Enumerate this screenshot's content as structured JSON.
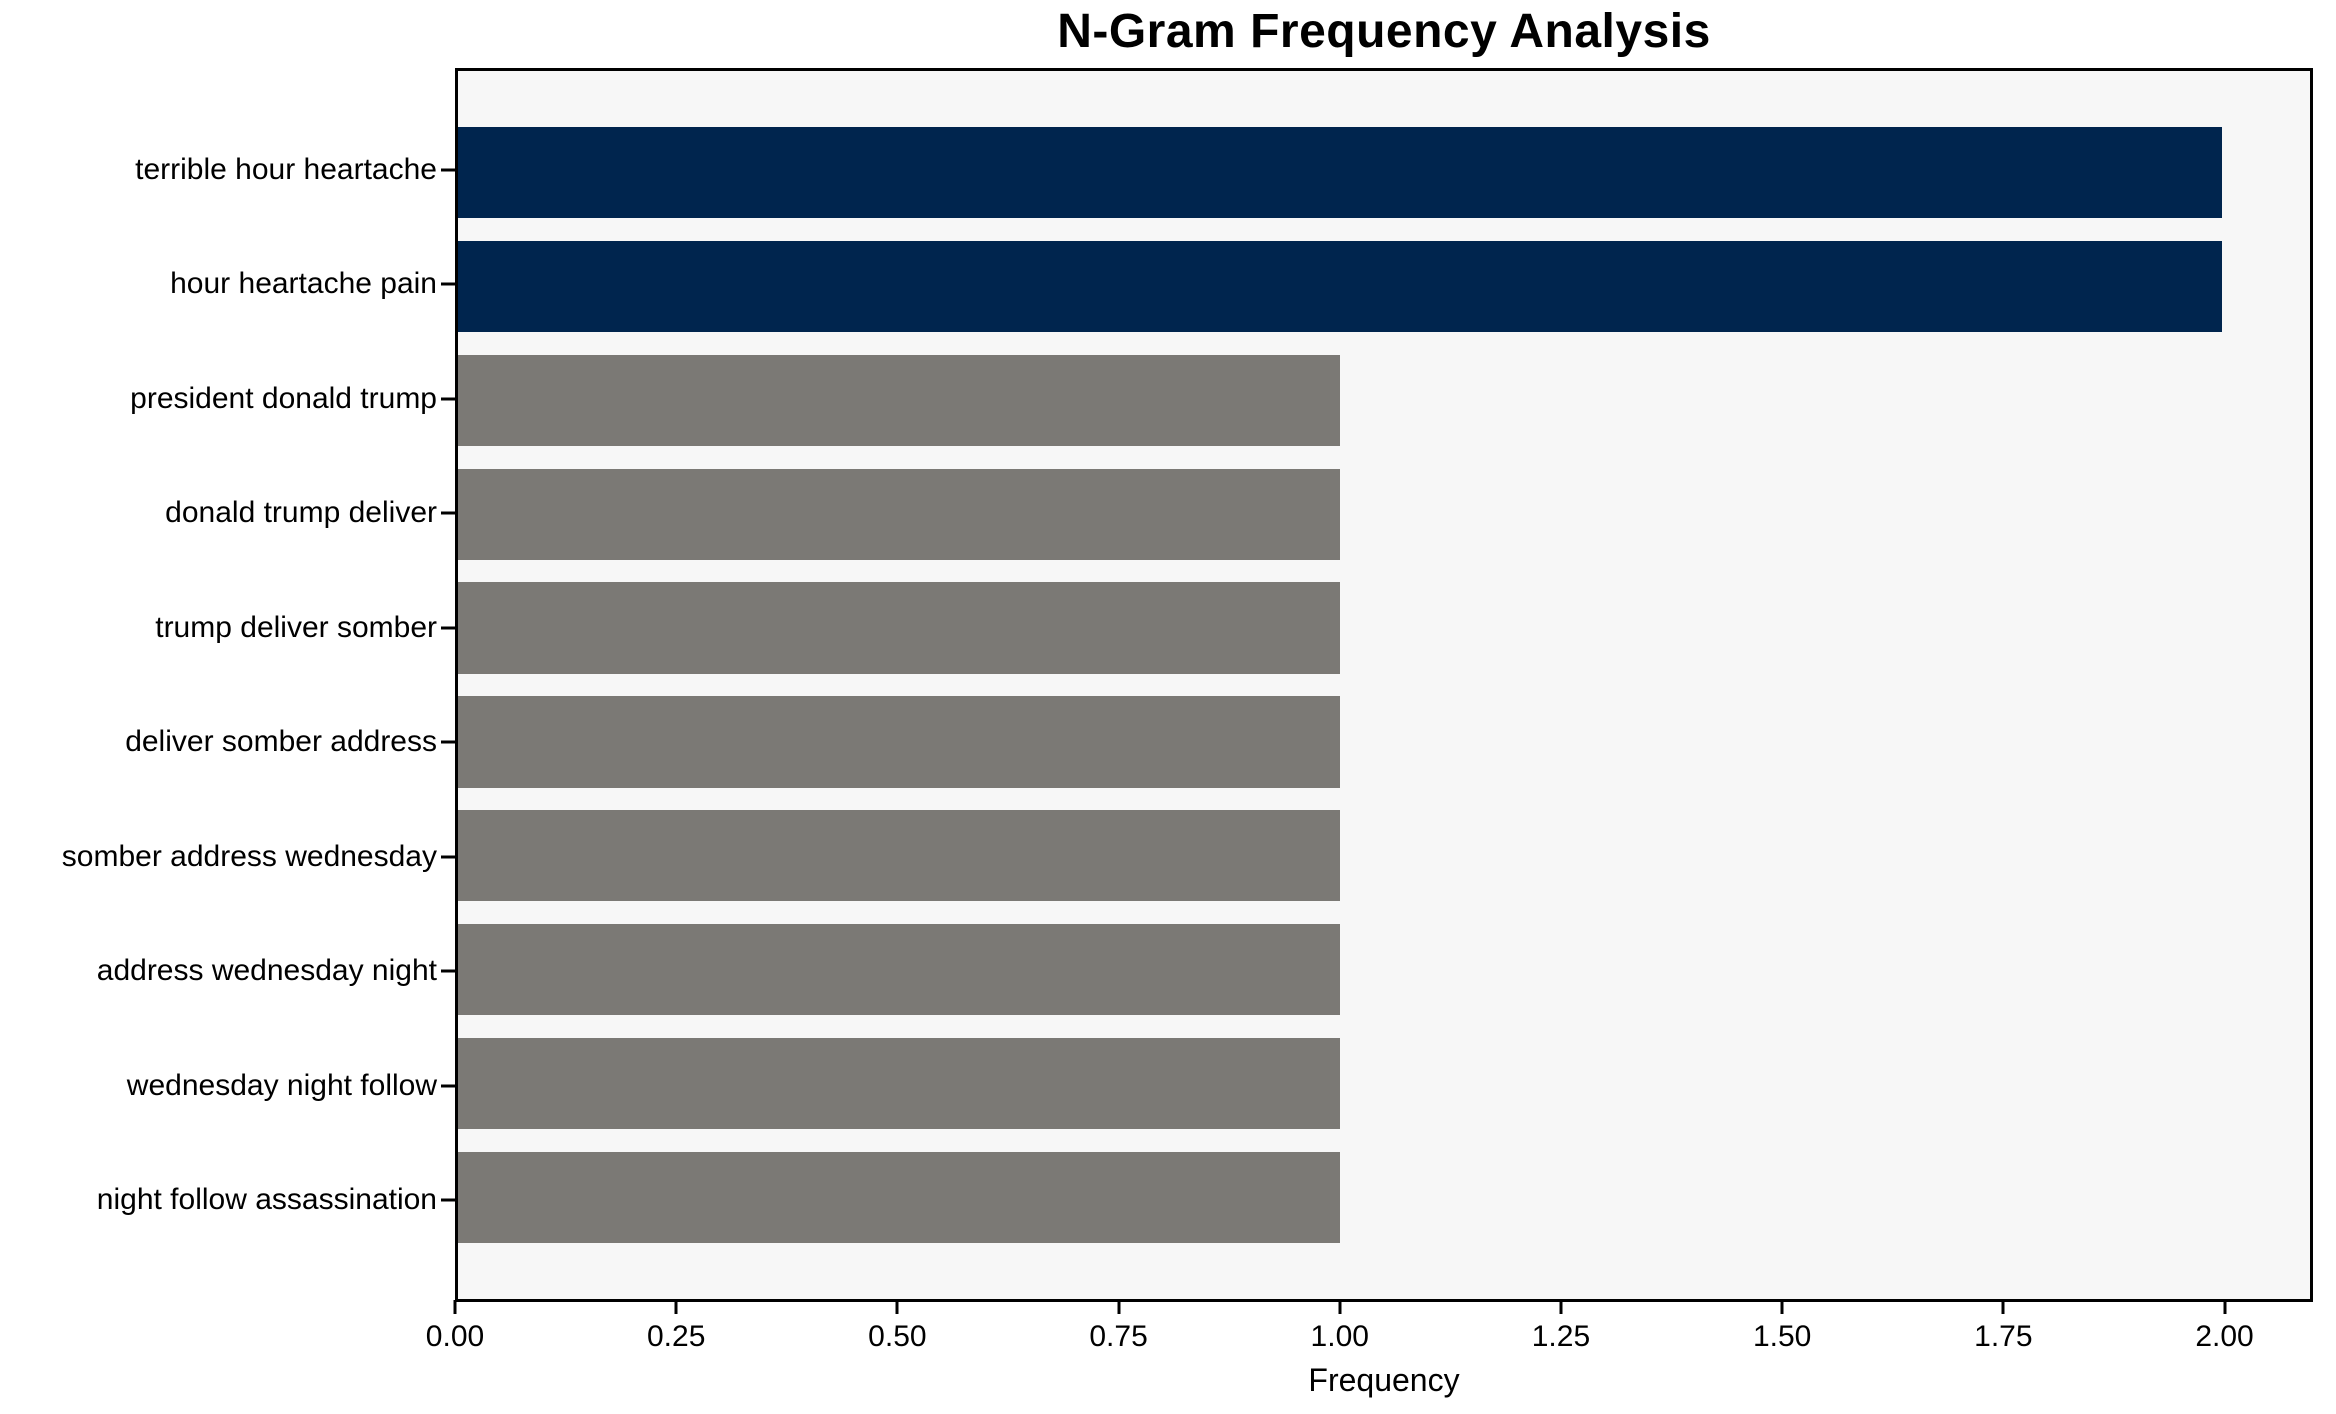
{
  "chart_data": {
    "type": "bar",
    "orientation": "horizontal",
    "title": "N-Gram Frequency Analysis",
    "xlabel": "Frequency",
    "ylabel": "",
    "categories": [
      "terrible hour heartache",
      "hour heartache pain",
      "president donald trump",
      "donald trump deliver",
      "trump deliver somber",
      "deliver somber address",
      "somber address wednesday",
      "address wednesday night",
      "wednesday night follow",
      "night follow assassination"
    ],
    "values": [
      2,
      2,
      1,
      1,
      1,
      1,
      1,
      1,
      1,
      1
    ],
    "bar_colors": [
      "#00254e",
      "#00254e",
      "#7b7975",
      "#7b7975",
      "#7b7975",
      "#7b7975",
      "#7b7975",
      "#7b7975",
      "#7b7975",
      "#7b7975"
    ],
    "highlight_color": "#00254e",
    "base_color": "#7b7975",
    "xlim": [
      0,
      2.1
    ],
    "xticks": {
      "values": [
        0,
        0.25,
        0.5,
        0.75,
        1.0,
        1.25,
        1.5,
        1.75,
        2.0
      ],
      "labels": [
        "0.00",
        "0.25",
        "0.50",
        "0.75",
        "1.00",
        "1.25",
        "1.50",
        "1.75",
        "2.00"
      ]
    },
    "bar_fraction": 0.8,
    "category_margin": 0.49,
    "grid": false,
    "legend": null,
    "plot_background": "#f7f7f7",
    "figure_background": "#ffffff",
    "spine_color": "#000000"
  }
}
